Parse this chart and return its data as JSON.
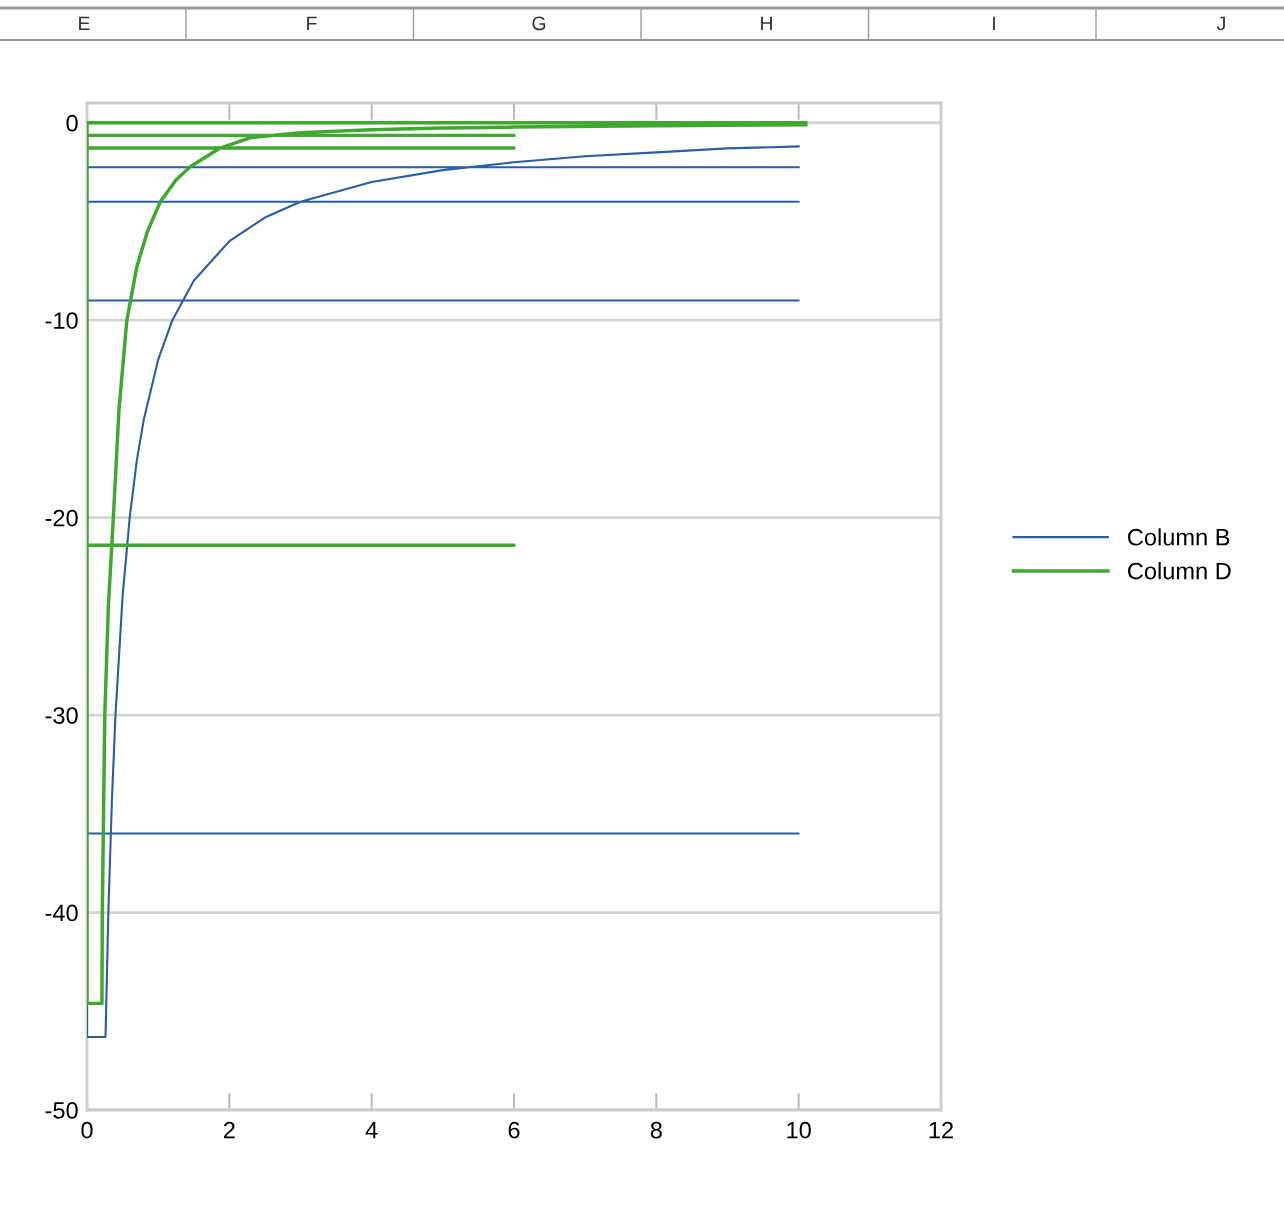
{
  "chart_data": {
    "type": "line",
    "series": [
      {
        "name": "Column B",
        "color": "#2a5ea0",
        "x": [
          10,
          0,
          0,
          10,
          0,
          0,
          10,
          0,
          0,
          10,
          0,
          0,
          0.26,
          0.3,
          0.35,
          0.4,
          0.5,
          0.6,
          0.7,
          0.8,
          1,
          1.2,
          1.5,
          2,
          2.5,
          3,
          4,
          5,
          6,
          7,
          8,
          9,
          10
        ],
        "values": [
          -2.25,
          -2.25,
          -4,
          -4,
          -4,
          -9,
          -9,
          -9,
          -36,
          -36,
          -36,
          -46.3,
          -46.3,
          -40,
          -34.3,
          -30,
          -24,
          -20,
          -17.1,
          -15,
          -12,
          -10,
          -8,
          -6,
          -4.8,
          -4,
          -3,
          -2.4,
          -2,
          -1.7,
          -1.5,
          -1.3,
          -1.2
        ]
      },
      {
        "name": "Column D",
        "color": "#3ea82f",
        "x": [
          10.1,
          0,
          0,
          6,
          0,
          0,
          6,
          0,
          0,
          6,
          0,
          0,
          0.21,
          0.215,
          0.25,
          0.3,
          0.37,
          0.45,
          0.56,
          0.7,
          0.85,
          1.03,
          1.25,
          1.45,
          1.87,
          2.3,
          3,
          4,
          5,
          6,
          8,
          10.1
        ],
        "values": [
          0,
          0,
          -0.64,
          -0.64,
          -0.64,
          -1.28,
          -1.28,
          -1.28,
          -21.4,
          -21.4,
          -21.4,
          -44.6,
          -44.6,
          -40,
          -30,
          -24.5,
          -20,
          -14.5,
          -10,
          -7.3,
          -5.5,
          -4,
          -2.9,
          -2.23,
          -1.28,
          -0.75,
          -0.5,
          -0.35,
          -0.27,
          -0.22,
          -0.15,
          -0.1
        ]
      }
    ],
    "xlim": [
      0,
      12
    ],
    "xticks": [
      0,
      2,
      4,
      6,
      8,
      10,
      12
    ],
    "ylim": [
      -50,
      1
    ],
    "yticks": [
      -50,
      -40,
      -30,
      -20,
      -10,
      0
    ],
    "grid": "y",
    "legend": "right",
    "marker": "none",
    "line_style": "solid",
    "annotations": [
      "E",
      "F",
      "G",
      "H",
      "I",
      "J"
    ]
  }
}
